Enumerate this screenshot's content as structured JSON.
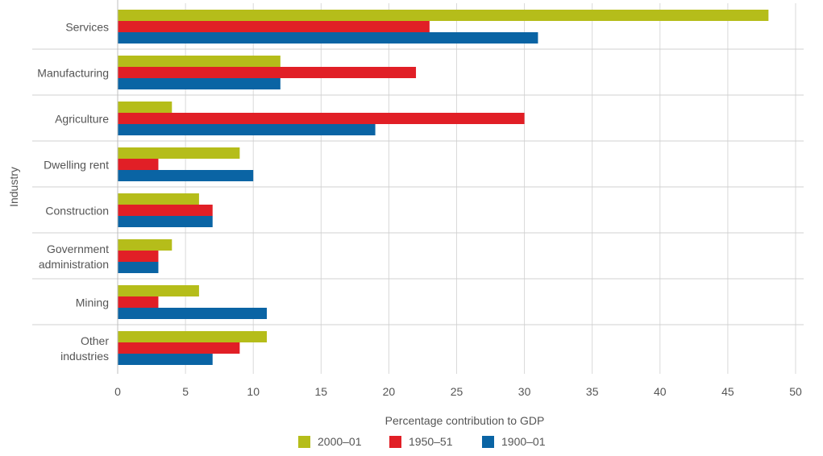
{
  "chart_data": {
    "type": "bar",
    "orientation": "horizontal",
    "categories": [
      "Services",
      "Manufacturing",
      "Agriculture",
      "Dwelling rent",
      "Construction",
      "Government administration",
      "Mining",
      "Other industries"
    ],
    "category_lines": [
      [
        "Services"
      ],
      [
        "Manufacturing"
      ],
      [
        "Agriculture"
      ],
      [
        "Dwelling rent"
      ],
      [
        "Construction"
      ],
      [
        "Government",
        "administration"
      ],
      [
        "Mining"
      ],
      [
        "Other",
        "industries"
      ]
    ],
    "series": [
      {
        "name": "2000–01",
        "color": "#b5bd1a",
        "values": [
          48,
          12,
          4,
          9,
          6,
          4,
          6,
          11
        ]
      },
      {
        "name": "1950–51",
        "color": "#e11f26",
        "values": [
          23,
          22,
          30,
          3,
          7,
          3,
          3,
          9
        ]
      },
      {
        "name": "1900–01",
        "color": "#0a64a4",
        "values": [
          31,
          12,
          19,
          10,
          7,
          3,
          11,
          7
        ]
      }
    ],
    "xlabel": "Percentage contribution to GDP",
    "ylabel": "Industry",
    "xlim": [
      0,
      50
    ],
    "xticks": [
      "0",
      "5",
      "10",
      "15",
      "20",
      "25",
      "30",
      "35",
      "40",
      "45",
      "50"
    ],
    "grid": "vertical",
    "legend_position": "bottom"
  }
}
